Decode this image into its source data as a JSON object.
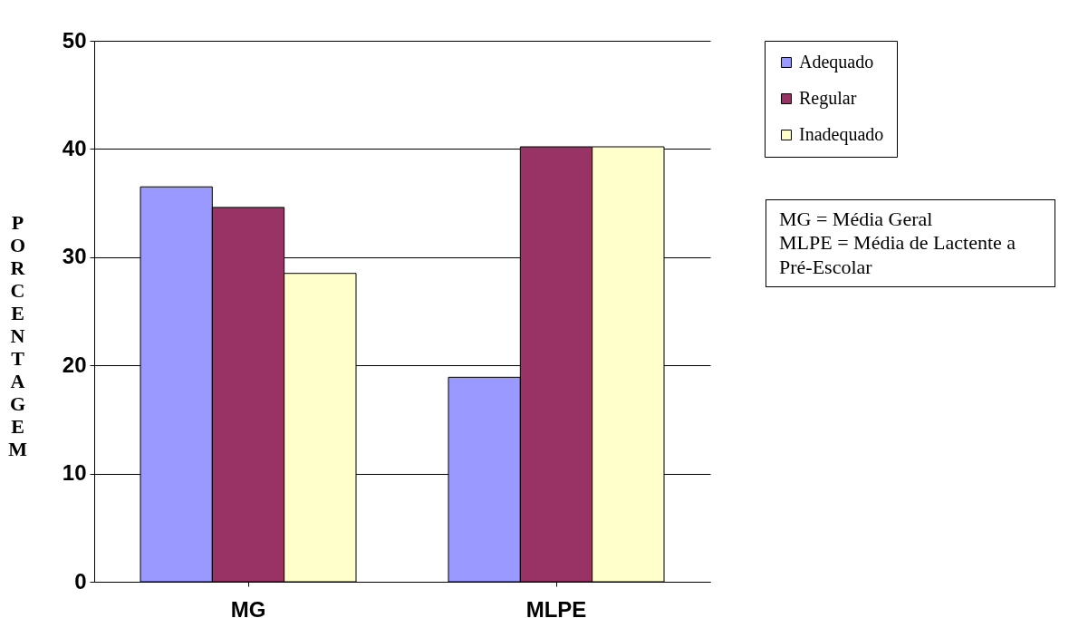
{
  "chart_data": {
    "type": "bar",
    "ylabel": "PORCENTAGEM",
    "categories": [
      "MG",
      "MLPE"
    ],
    "series": [
      {
        "name": "Adequado",
        "color": "#9999ff",
        "values": [
          36.5,
          18.9
        ]
      },
      {
        "name": "Regular",
        "color": "#993366",
        "values": [
          34.6,
          40.2
        ]
      },
      {
        "name": "Inadequado",
        "color": "#ffffcc",
        "values": [
          28.5,
          40.2
        ]
      }
    ],
    "ylim": [
      0,
      50
    ],
    "yticks": [
      0,
      10,
      20,
      30,
      40,
      50
    ],
    "grid": "y",
    "legend": "top right",
    "annotations": [
      "MG = Média Geral",
      "MLPE = Média de Lactente a Pré-Escolar"
    ]
  }
}
